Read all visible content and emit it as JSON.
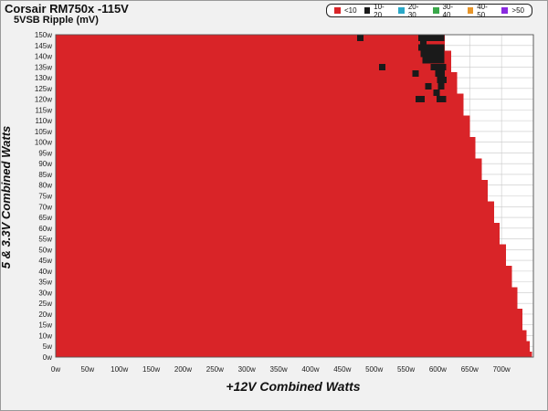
{
  "chart_data": {
    "type": "heatmap",
    "title": "Corsair RM750x -115V",
    "subtitle": "5VSB Ripple (mV)",
    "xlabel": "+12V Combined Watts",
    "ylabel": "5 & 3.3V Combined Watts",
    "xlim": [
      0,
      750
    ],
    "ylim": [
      0,
      150
    ],
    "x_ticks": [
      "0w",
      "50w",
      "100w",
      "150w",
      "200w",
      "250w",
      "300w",
      "350w",
      "400w",
      "450w",
      "500w",
      "550w",
      "600w",
      "650w",
      "700w"
    ],
    "y_ticks": [
      "0w",
      "5w",
      "10w",
      "15w",
      "20w",
      "25w",
      "30w",
      "35w",
      "40w",
      "45w",
      "50w",
      "55w",
      "60w",
      "65w",
      "70w",
      "75w",
      "80w",
      "85w",
      "90w",
      "95w",
      "100w",
      "105w",
      "110w",
      "115w",
      "120w",
      "125w",
      "130w",
      "135w",
      "140w",
      "145w",
      "150w"
    ],
    "legend": [
      {
        "label": "<10",
        "color": "#d92428"
      },
      {
        "label": "10-20",
        "color": "#1a1a1a"
      },
      {
        "label": "20-30",
        "color": "#2aa8c8"
      },
      {
        "label": "30-40",
        "color": "#3aa84a"
      },
      {
        "label": "40-50",
        "color": "#e8962a"
      },
      {
        "label": ">50",
        "color": "#8a2ae0"
      }
    ],
    "series": [
      {
        "category": "<10",
        "max_12v_by_5v": [
          [
            0,
            748
          ],
          [
            5,
            744
          ],
          [
            10,
            739
          ],
          [
            15,
            733
          ],
          [
            20,
            733
          ],
          [
            25,
            725
          ],
          [
            30,
            725
          ],
          [
            35,
            716
          ],
          [
            40,
            716
          ],
          [
            45,
            707
          ],
          [
            50,
            707
          ],
          [
            55,
            697
          ],
          [
            60,
            697
          ],
          [
            65,
            688
          ],
          [
            70,
            688
          ],
          [
            75,
            678
          ],
          [
            80,
            678
          ],
          [
            85,
            669
          ],
          [
            90,
            669
          ],
          [
            95,
            659
          ],
          [
            100,
            659
          ],
          [
            105,
            650
          ],
          [
            110,
            650
          ],
          [
            115,
            640
          ],
          [
            120,
            640
          ],
          [
            125,
            630
          ],
          [
            130,
            630
          ],
          [
            135,
            621
          ],
          [
            140,
            621
          ],
          [
            145,
            611
          ],
          [
            150,
            611
          ]
        ]
      },
      {
        "category": "10-20",
        "points": [
          [
            478,
            150
          ],
          [
            513,
            135
          ],
          [
            565,
            132
          ],
          [
            574,
            150
          ],
          [
            577,
            147
          ],
          [
            580,
            150
          ],
          [
            584,
            150
          ],
          [
            587,
            150
          ],
          [
            591,
            150
          ],
          [
            594,
            150
          ],
          [
            598,
            150
          ],
          [
            601,
            150
          ],
          [
            605,
            150
          ],
          [
            574,
            144
          ],
          [
            580,
            144
          ],
          [
            584,
            144
          ],
          [
            587,
            144
          ],
          [
            591,
            144
          ],
          [
            594,
            144
          ],
          [
            598,
            144
          ],
          [
            601,
            144
          ],
          [
            605,
            144
          ],
          [
            578,
            141
          ],
          [
            584,
            141
          ],
          [
            587,
            141
          ],
          [
            591,
            141
          ],
          [
            594,
            141
          ],
          [
            598,
            141
          ],
          [
            601,
            141
          ],
          [
            605,
            141
          ],
          [
            581,
            138
          ],
          [
            588,
            138
          ],
          [
            596,
            138
          ],
          [
            601,
            138
          ],
          [
            605,
            138
          ],
          [
            594,
            135
          ],
          [
            598,
            135
          ],
          [
            603,
            135
          ],
          [
            608,
            135
          ],
          [
            601,
            132
          ],
          [
            606,
            132
          ],
          [
            604,
            129
          ],
          [
            609,
            129
          ],
          [
            585,
            126
          ],
          [
            605,
            126
          ],
          [
            598,
            123
          ],
          [
            570,
            120
          ],
          [
            574,
            120
          ],
          [
            603,
            120
          ],
          [
            608,
            120
          ]
        ]
      }
    ],
    "grid": true
  }
}
